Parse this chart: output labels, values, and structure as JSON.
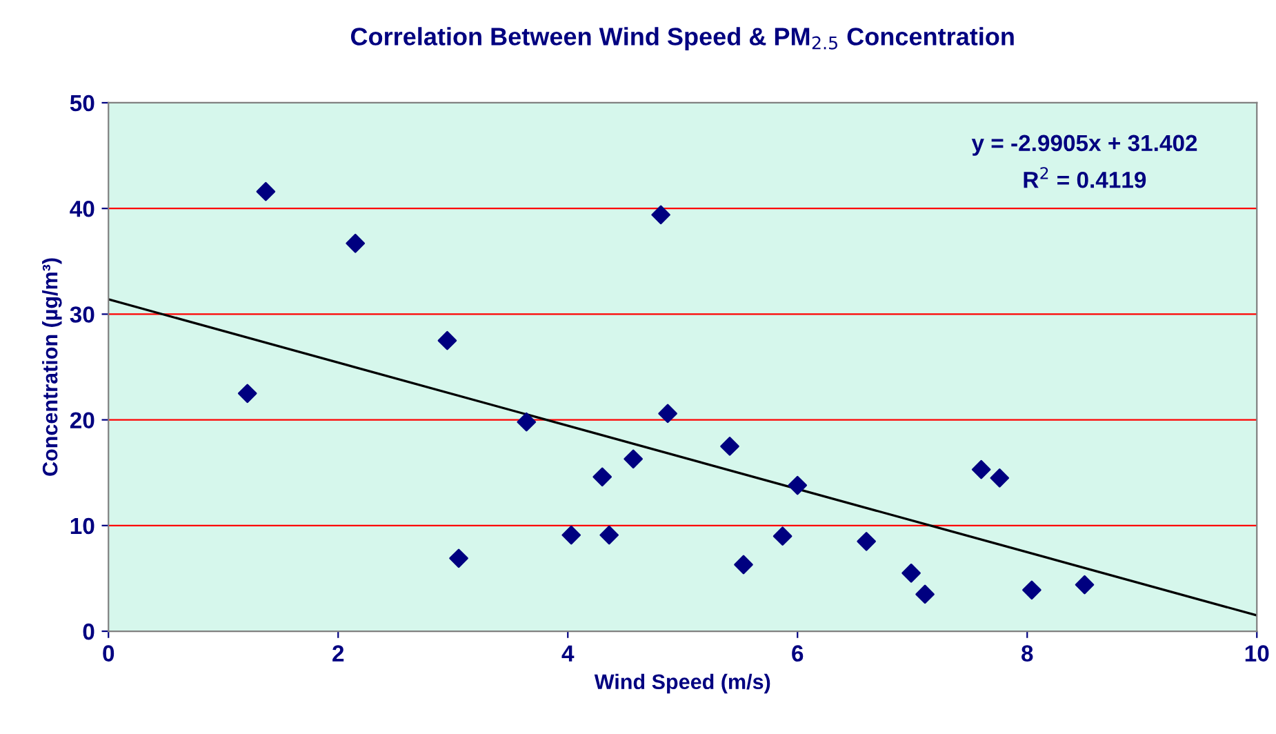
{
  "chart_data": {
    "type": "scatter",
    "title": "Correlation Between Wind Speed & PM$_{2.5}$ Concentration",
    "xlabel": "Wind Speed (m/s)",
    "ylabel": "Concentration (µg/m³)",
    "xlim": [
      0,
      10
    ],
    "xticks": [
      0,
      2,
      4,
      6,
      8,
      10
    ],
    "ylim": [
      0,
      50
    ],
    "yticks": [
      0,
      10,
      20,
      30,
      40,
      50
    ],
    "grid": "y",
    "legend": false,
    "annotations": [
      "y = -2.9905x + 31.402",
      "R$^{2}$ = 0.4119"
    ],
    "series": [
      {
        "marker": "diamond",
        "color": "#000080",
        "x": [
          1.21,
          1.37,
          2.15,
          2.95,
          3.05,
          3.64,
          4.03,
          4.3,
          4.36,
          4.57,
          4.81,
          4.87,
          5.41,
          5.53,
          5.87,
          6.0,
          6.6,
          6.99,
          7.11,
          7.6,
          7.76,
          8.04,
          8.5
        ],
        "values": [
          22.5,
          41.6,
          36.7,
          27.5,
          6.9,
          19.8,
          9.1,
          14.6,
          9.1,
          16.3,
          39.4,
          20.6,
          17.5,
          6.3,
          9.0,
          13.8,
          8.5,
          5.5,
          3.5,
          15.3,
          14.5,
          3.9,
          4.4
        ]
      },
      {
        "type": "line",
        "color": "#000000",
        "x": [
          0,
          10
        ],
        "values": [
          31.4,
          1.5
        ]
      }
    ]
  }
}
